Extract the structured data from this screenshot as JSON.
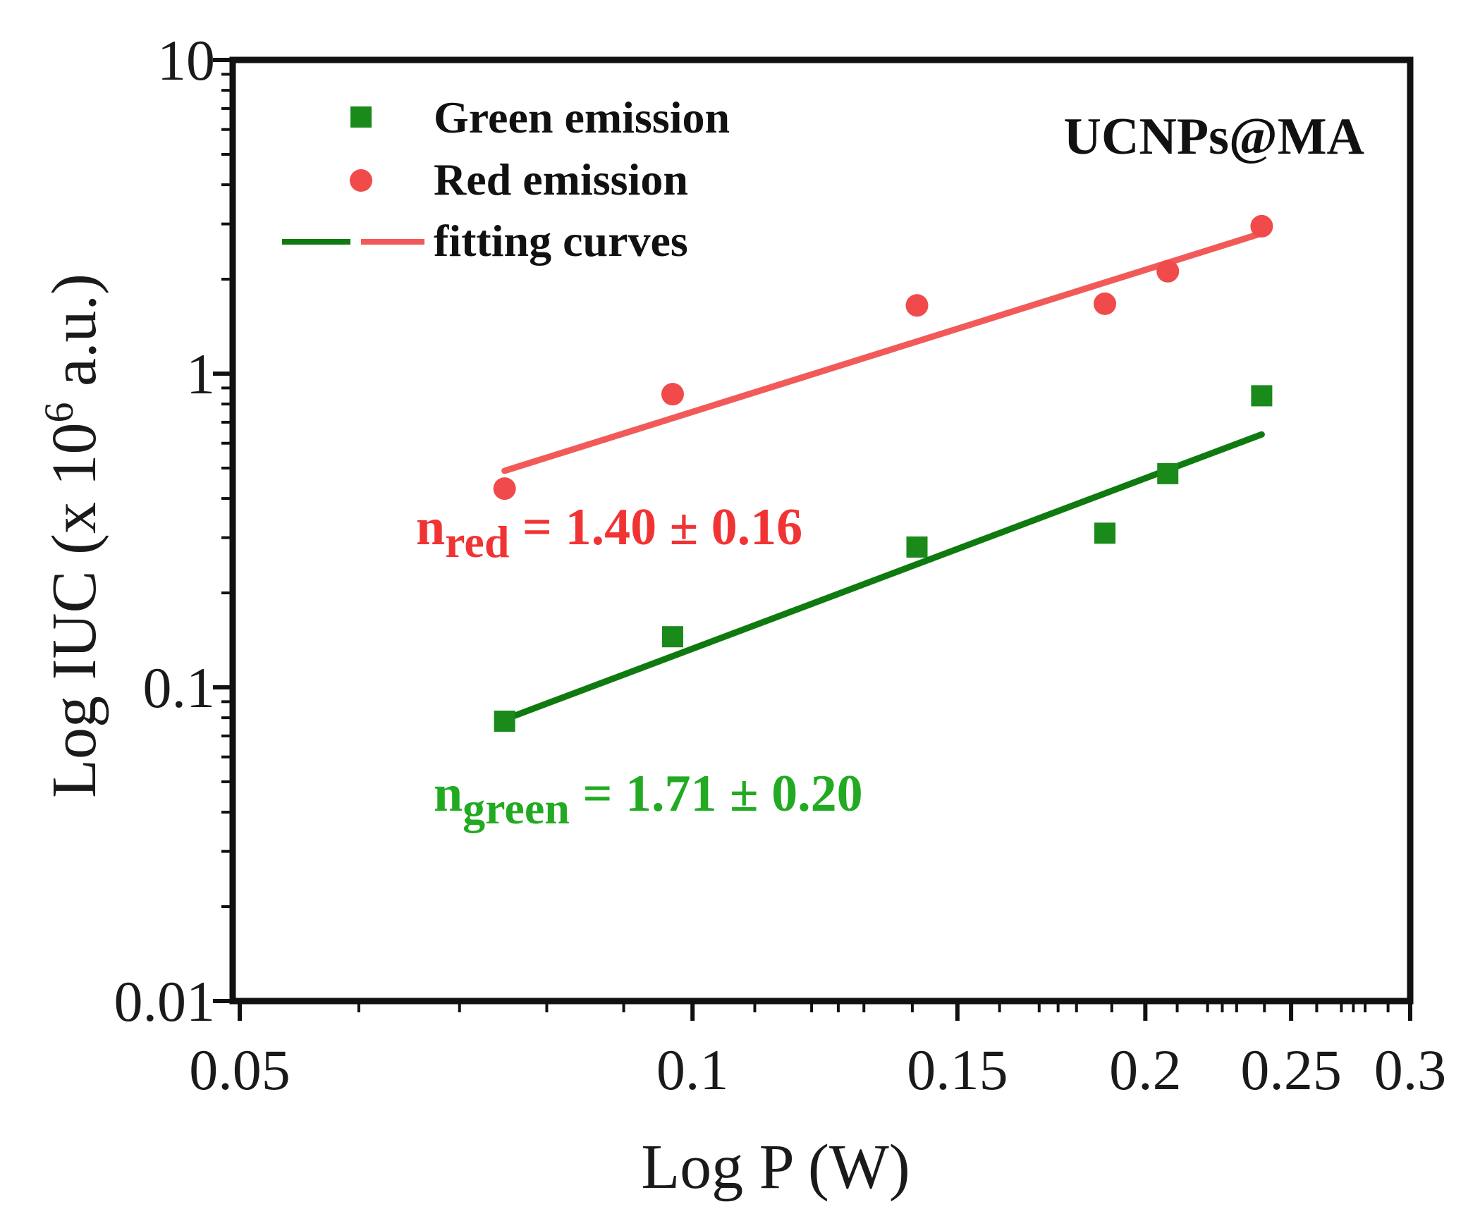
{
  "chart_data": {
    "type": "scatter",
    "xscale": "log",
    "yscale": "log",
    "xlabel": "Log P (W)",
    "ylabel_prefix": "Log IUC (x 10",
    "ylabel_exp": "6",
    "ylabel_suffix": " a.u.)",
    "xlim": [
      0.05,
      0.3
    ],
    "ylim": [
      0.01,
      10
    ],
    "xticks": [
      {
        "value": 0.05,
        "label": "0.05"
      },
      {
        "value": 0.1,
        "label": "0.1"
      },
      {
        "value": 0.15,
        "label": "0.15"
      },
      {
        "value": 0.2,
        "label": "0.2"
      },
      {
        "value": 0.25,
        "label": "0.25"
      },
      {
        "value": 0.3,
        "label": "0.3"
      }
    ],
    "yticks": [
      {
        "value": 0.01,
        "label": "0.01"
      },
      {
        "value": 0.1,
        "label": "0.1"
      },
      {
        "value": 1,
        "label": "1"
      },
      {
        "value": 10,
        "label": "10"
      }
    ],
    "sample_label": "UCNPs@MA",
    "legend": {
      "green_label": "Green emission",
      "red_label": "Red emission",
      "fit_label": "fitting curves",
      "position": "top-left"
    },
    "series": [
      {
        "name": "Green emission",
        "marker": "square",
        "color": "#1a8a1a",
        "x": [
          0.075,
          0.097,
          0.141,
          0.188,
          0.207,
          0.239
        ],
        "y": [
          0.078,
          0.145,
          0.28,
          0.31,
          0.48,
          0.85
        ]
      },
      {
        "name": "Red emission",
        "marker": "circle",
        "color": "#f04a4a",
        "x": [
          0.075,
          0.097,
          0.141,
          0.188,
          0.207,
          0.239
        ],
        "y": [
          0.43,
          0.86,
          1.65,
          1.67,
          2.12,
          2.95
        ]
      }
    ],
    "fits": [
      {
        "name": "green fit",
        "color": "#0f7a0f",
        "x": [
          0.075,
          0.239
        ],
        "y": [
          0.079,
          0.64
        ]
      },
      {
        "name": "red fit",
        "color": "#f25a5a",
        "x": [
          0.075,
          0.239
        ],
        "y": [
          0.49,
          2.8
        ]
      }
    ],
    "annotations": {
      "red": {
        "n": "n",
        "sub": "red",
        "text": " = 1.40 ± 0.16",
        "color": "#f03434"
      },
      "green": {
        "n": "n",
        "sub": "green",
        "text": " = 1.71 ± 0.20",
        "color": "#22aa22"
      }
    }
  }
}
